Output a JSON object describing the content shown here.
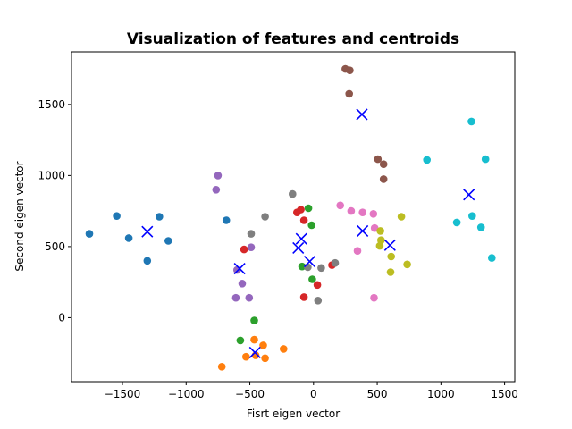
{
  "chart_data": {
    "type": "scatter",
    "title": "Visualization of features and centroids",
    "xlabel": "Fisrt eigen vector",
    "ylabel": "Second eigen vector",
    "xlim": [
      -1900,
      1580
    ],
    "ylim": [
      -450,
      1870
    ],
    "xticks": [
      -1500,
      -1000,
      -500,
      0,
      500,
      1000,
      1500
    ],
    "yticks": [
      0,
      500,
      1000,
      1500
    ],
    "xtick_labels": [
      "−1500",
      "−1000",
      "−500",
      "0",
      "500",
      "1000",
      "1500"
    ],
    "ytick_labels": [
      "0",
      "500",
      "1000",
      "1500"
    ],
    "grid": false,
    "series": [
      {
        "color": "#1f77b4",
        "points": [
          [
            -1760,
            590
          ],
          [
            -1545,
            715
          ],
          [
            -1450,
            560
          ],
          [
            -1305,
            400
          ],
          [
            -1210,
            710
          ],
          [
            -1140,
            540
          ],
          [
            -685,
            685
          ]
        ]
      },
      {
        "color": "#ff7f0e",
        "points": [
          [
            -720,
            -345
          ],
          [
            -530,
            -275
          ],
          [
            -465,
            -155
          ],
          [
            -455,
            -265
          ],
          [
            -395,
            -195
          ],
          [
            -380,
            -285
          ],
          [
            -235,
            -220
          ]
        ]
      },
      {
        "color": "#2ca02c",
        "points": [
          [
            -575,
            -160
          ],
          [
            -465,
            -20
          ],
          [
            -90,
            360
          ],
          [
            -40,
            770
          ],
          [
            -15,
            650
          ],
          [
            -10,
            270
          ]
        ]
      },
      {
        "color": "#d62728",
        "points": [
          [
            -545,
            480
          ],
          [
            -130,
            740
          ],
          [
            -100,
            760
          ],
          [
            -75,
            685
          ],
          [
            -75,
            145
          ],
          [
            30,
            230
          ],
          [
            145,
            370
          ]
        ]
      },
      {
        "color": "#9467bd",
        "points": [
          [
            -750,
            1000
          ],
          [
            -765,
            900
          ],
          [
            -600,
            335
          ],
          [
            -560,
            240
          ],
          [
            -610,
            140
          ],
          [
            -505,
            140
          ],
          [
            -490,
            495
          ]
        ]
      },
      {
        "color": "#8c564b",
        "points": [
          [
            250,
            1750
          ],
          [
            285,
            1740
          ],
          [
            280,
            1575
          ],
          [
            505,
            1115
          ],
          [
            550,
            1080
          ],
          [
            550,
            975
          ]
        ]
      },
      {
        "color": "#e377c2",
        "points": [
          [
            210,
            790
          ],
          [
            295,
            750
          ],
          [
            385,
            740
          ],
          [
            470,
            730
          ],
          [
            480,
            630
          ],
          [
            345,
            470
          ],
          [
            475,
            140
          ]
        ]
      },
      {
        "color": "#7f7f7f",
        "points": [
          [
            -165,
            870
          ],
          [
            -490,
            590
          ],
          [
            -380,
            710
          ],
          [
            -45,
            355
          ],
          [
            60,
            350
          ],
          [
            170,
            385
          ],
          [
            35,
            120
          ]
        ]
      },
      {
        "color": "#bcbd22",
        "points": [
          [
            690,
            710
          ],
          [
            525,
            610
          ],
          [
            530,
            545
          ],
          [
            520,
            505
          ],
          [
            610,
            430
          ],
          [
            735,
            375
          ],
          [
            605,
            320
          ]
        ]
      },
      {
        "color": "#17becf",
        "points": [
          [
            1240,
            1380
          ],
          [
            890,
            1110
          ],
          [
            1350,
            1115
          ],
          [
            1125,
            670
          ],
          [
            1245,
            715
          ],
          [
            1315,
            635
          ],
          [
            1400,
            420
          ]
        ]
      }
    ],
    "centroids": {
      "color": "#0000ff",
      "marker": "x",
      "points": [
        [
          -1305,
          605
        ],
        [
          -580,
          345
        ],
        [
          -460,
          -245
        ],
        [
          -120,
          490
        ],
        [
          -95,
          555
        ],
        [
          -30,
          395
        ],
        [
          380,
          1430
        ],
        [
          385,
          610
        ],
        [
          600,
          510
        ],
        [
          1220,
          865
        ]
      ]
    }
  }
}
